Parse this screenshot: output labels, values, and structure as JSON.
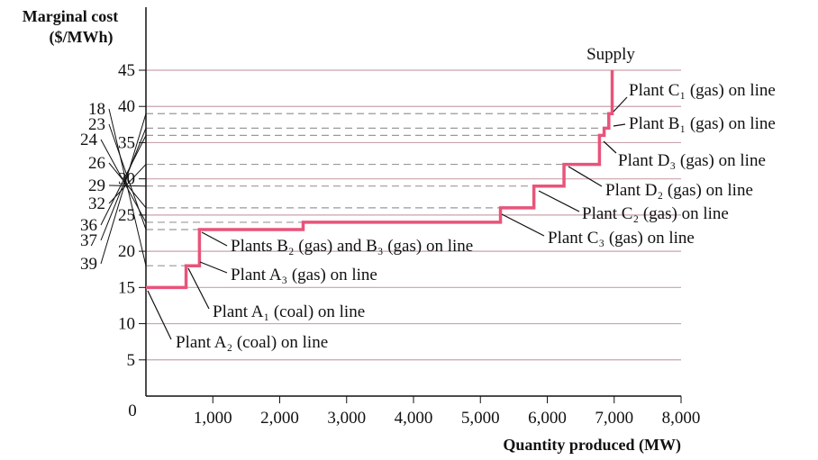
{
  "chart_data": {
    "type": "step",
    "y_label_lines": [
      "Marginal cost",
      "($/MWh)"
    ],
    "x_label": "Quantity produced (MW)",
    "series": [
      {
        "name": "Supply",
        "color": "#e8547a",
        "x": [
          0,
          600,
          800,
          2350,
          5300,
          5800,
          6250,
          6780,
          6850,
          6920,
          6970
        ],
        "values": [
          15,
          18,
          23,
          24,
          26,
          29,
          32,
          36,
          37,
          39,
          45
        ]
      }
    ],
    "xlim": [
      0,
      8000
    ],
    "xticks": [
      0,
      {
        "value": 1000,
        "label": "1,000"
      },
      {
        "value": 2000,
        "label": "2,000"
      },
      {
        "value": 3000,
        "label": "3,000"
      },
      {
        "value": 4000,
        "label": "4,000"
      },
      {
        "value": 5000,
        "label": "5,000"
      },
      {
        "value": 6000,
        "label": "6,000"
      },
      {
        "value": 7000,
        "label": "7,000"
      },
      {
        "value": 8000,
        "label": "8,000"
      }
    ],
    "ylim": [
      0,
      45
    ],
    "yticks": [
      5,
      10,
      15,
      20,
      25,
      30,
      35,
      40,
      45
    ],
    "ref_yticks": [
      18,
      23,
      24,
      26,
      29,
      32,
      36,
      37,
      39
    ],
    "grid": true,
    "annotations": [
      "Plant C₁ (gas) on line",
      "Plant B₁ (gas) on line",
      "Plant D₃ (gas) on line",
      "Plant D₂ (gas) on line",
      "Plant C₂ (gas) on line",
      "Plant C₃ (gas) on line",
      "Plants B₂ (gas) and B₃ (gas) on line",
      "Plant A₃ (gas) on line",
      "Plant A₁ (coal) on line",
      "Plant A₂ (coal) on line"
    ]
  }
}
